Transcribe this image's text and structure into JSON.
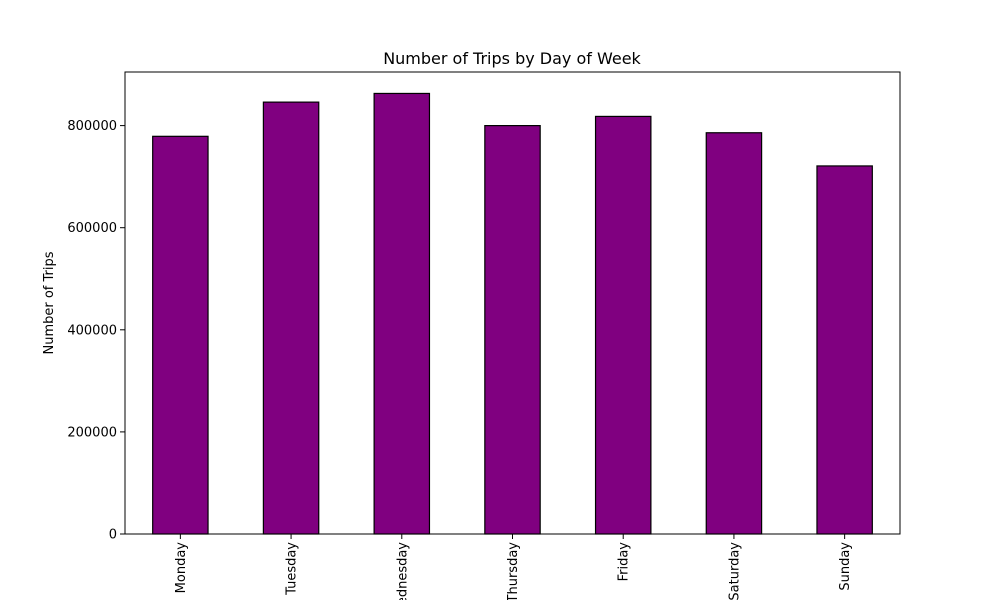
{
  "chart_data": {
    "type": "bar",
    "title": "Number of Trips by Day of Week",
    "xlabel": "",
    "ylabel": "Number of Trips",
    "categories": [
      "Monday",
      "Tuesday",
      "Wednesday",
      "Thursday",
      "Friday",
      "Saturday",
      "Sunday"
    ],
    "values": [
      779000,
      846000,
      863000,
      800000,
      818000,
      786000,
      721000
    ],
    "ylim": [
      0,
      905000
    ],
    "yticks": [
      0,
      200000,
      400000,
      600000,
      800000
    ],
    "ytick_labels": [
      "0",
      "200000",
      "400000",
      "600000",
      "800000"
    ],
    "bar_color": "#800080",
    "edge_color": "#000000",
    "grid": false,
    "legend": "none",
    "xtick_rotation": "vertical"
  }
}
